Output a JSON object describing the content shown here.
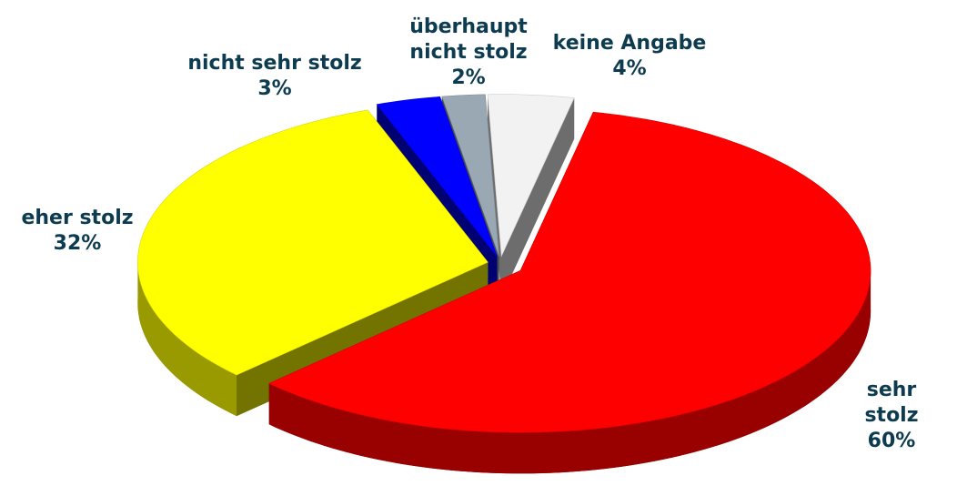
{
  "chart_data": {
    "type": "pie",
    "categories": [
      "sehr stolz",
      "eher stolz",
      "nicht sehr stolz",
      "überhaupt nicht stolz",
      "keine Angabe"
    ],
    "values": [
      60,
      32,
      3,
      2,
      4
    ],
    "value_labels": [
      "60%",
      "32%",
      "3%",
      "2%",
      "4%"
    ],
    "colors": [
      "#ff0000",
      "#ffff00",
      "#0000ff",
      "#9aa8b4",
      "#f2f2f2"
    ]
  }
}
